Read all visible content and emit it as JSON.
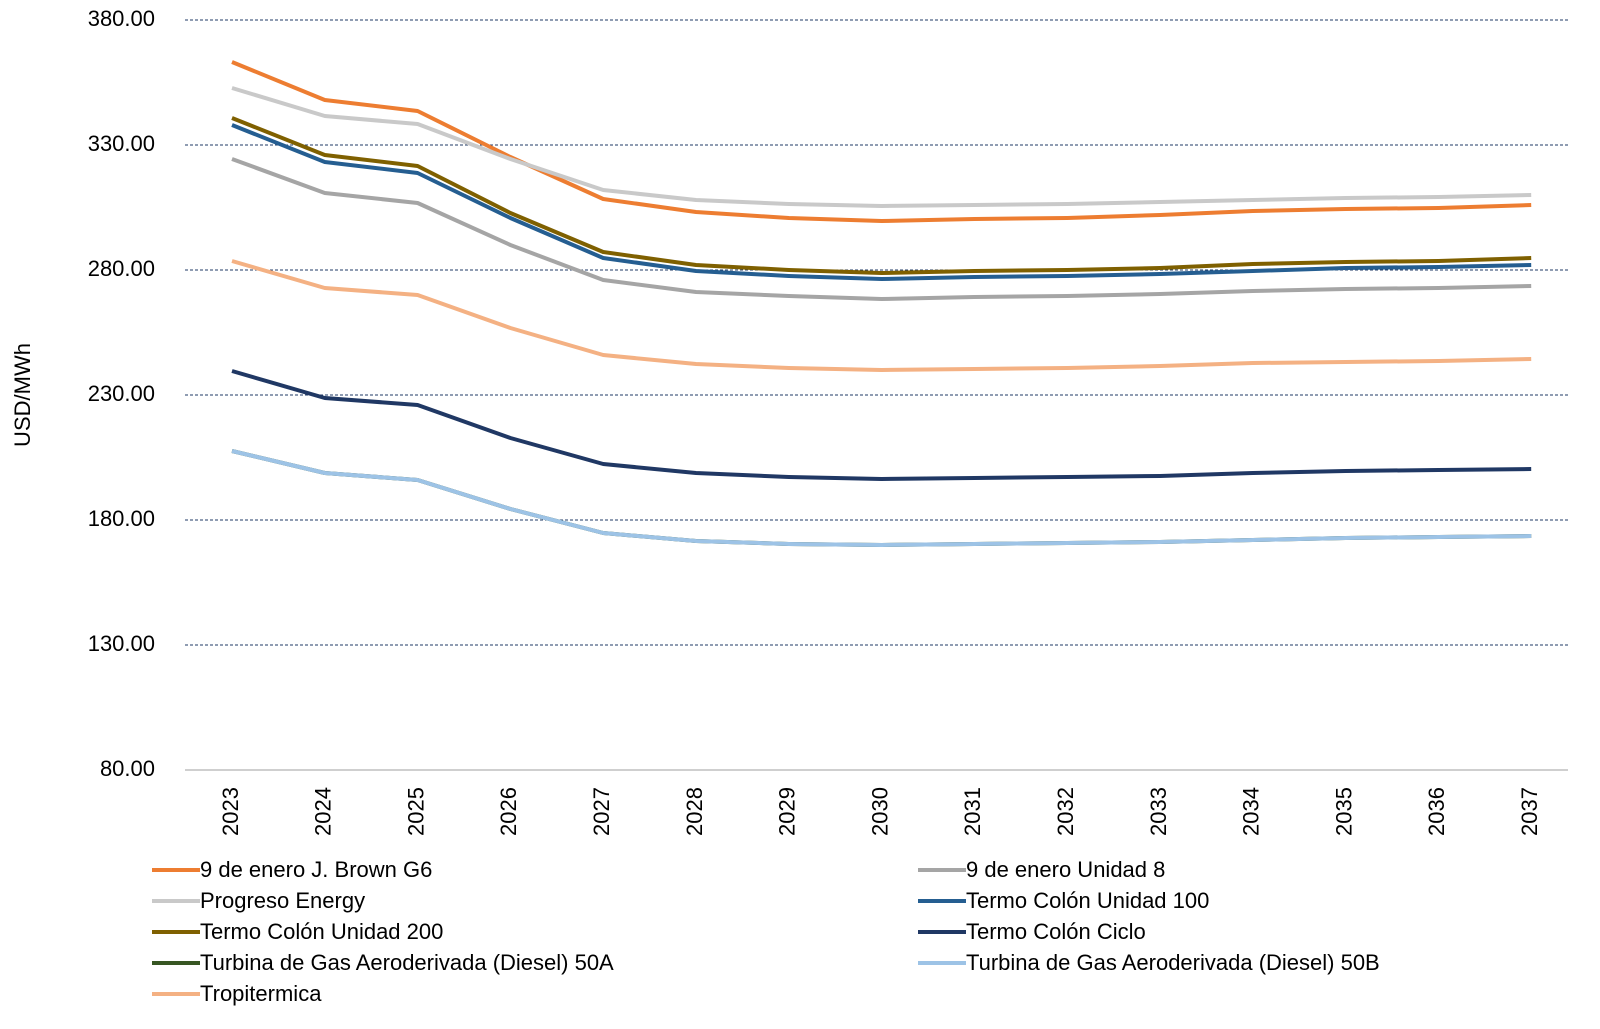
{
  "chart_data": {
    "type": "line",
    "y_label": "USD/MWh",
    "categories": [
      "2023",
      "2024",
      "2025",
      "2026",
      "2027",
      "2028",
      "2029",
      "2030",
      "2031",
      "2032",
      "2033",
      "2034",
      "2035",
      "2036",
      "2037"
    ],
    "ylim": [
      80,
      380
    ],
    "yticks": [
      {
        "value": 80,
        "label": "80.00"
      },
      {
        "value": 130,
        "label": "130.00"
      },
      {
        "value": 180,
        "label": "180.00"
      },
      {
        "value": 230,
        "label": "230.00"
      },
      {
        "value": 280,
        "label": "280.00"
      },
      {
        "value": 330,
        "label": "330.00"
      },
      {
        "value": 380,
        "label": "380.00"
      }
    ],
    "grid": true,
    "legend": "bottom",
    "series": [
      {
        "name": "9 de enero J. Brown G6",
        "color": "#ed7d31",
        "values": [
          363.2,
          348,
          343.6,
          325.2,
          308.4,
          303.2,
          300.8,
          299.6,
          300.4,
          300.8,
          302,
          303.6,
          304.4,
          304.8,
          306
        ]
      },
      {
        "name": "9 de enero Unidad 8",
        "color": "#a5a5a5",
        "values": [
          324.4,
          310.8,
          306.8,
          290,
          276,
          271.2,
          269.6,
          268.4,
          269.2,
          269.6,
          270.4,
          271.6,
          272.4,
          272.8,
          273.6
        ]
      },
      {
        "name": "Progreso Energy",
        "color": "#c9c9c9",
        "values": [
          352.8,
          341.6,
          338.4,
          324.4,
          312,
          308,
          306.4,
          305.6,
          306,
          306.4,
          307.2,
          308,
          308.8,
          309.2,
          310
        ]
      },
      {
        "name": "Termo Colón Unidad 100",
        "color": "#255e91",
        "values": [
          338,
          323.2,
          318.8,
          300.8,
          284.8,
          279.6,
          277.6,
          276.4,
          277.2,
          277.6,
          278.4,
          279.6,
          280.8,
          281.2,
          282
        ]
      },
      {
        "name": "Termo Colón Unidad 200",
        "color": "#7f6000",
        "values": [
          340.8,
          326,
          321.6,
          302.8,
          287.2,
          282,
          280,
          278.8,
          279.6,
          280,
          280.8,
          282.4,
          283.2,
          283.6,
          284.8
        ]
      },
      {
        "name": "Termo Colón Ciclo",
        "color": "#203864",
        "values": [
          239.6,
          228.8,
          226,
          212.8,
          202.4,
          198.8,
          197.2,
          196.4,
          196.8,
          197.2,
          197.6,
          198.8,
          199.6,
          200,
          200.4
        ]
      },
      {
        "name": "Turbina de Gas Aeroderivada (Diesel) 50A",
        "color": "#375623",
        "values": [
          207.6,
          198.8,
          196,
          184.4,
          174.8,
          171.6,
          170.4,
          170,
          170.4,
          170.8,
          171.2,
          172,
          172.8,
          173.2,
          173.6
        ]
      },
      {
        "name": "Turbina de Gas Aeroderivada (Diesel) 50B",
        "color": "#9dc3e6",
        "values": [
          207.6,
          198.8,
          196,
          184.4,
          174.8,
          171.6,
          170.4,
          170,
          170.4,
          170.8,
          171.2,
          172,
          172.8,
          173.2,
          173.6
        ]
      },
      {
        "name": "Tropitermica",
        "color": "#f4b183",
        "values": [
          283.6,
          272.8,
          270,
          256.8,
          246,
          242.4,
          240.8,
          240,
          240.4,
          240.8,
          241.6,
          242.8,
          243.2,
          243.6,
          244.4
        ]
      }
    ]
  }
}
